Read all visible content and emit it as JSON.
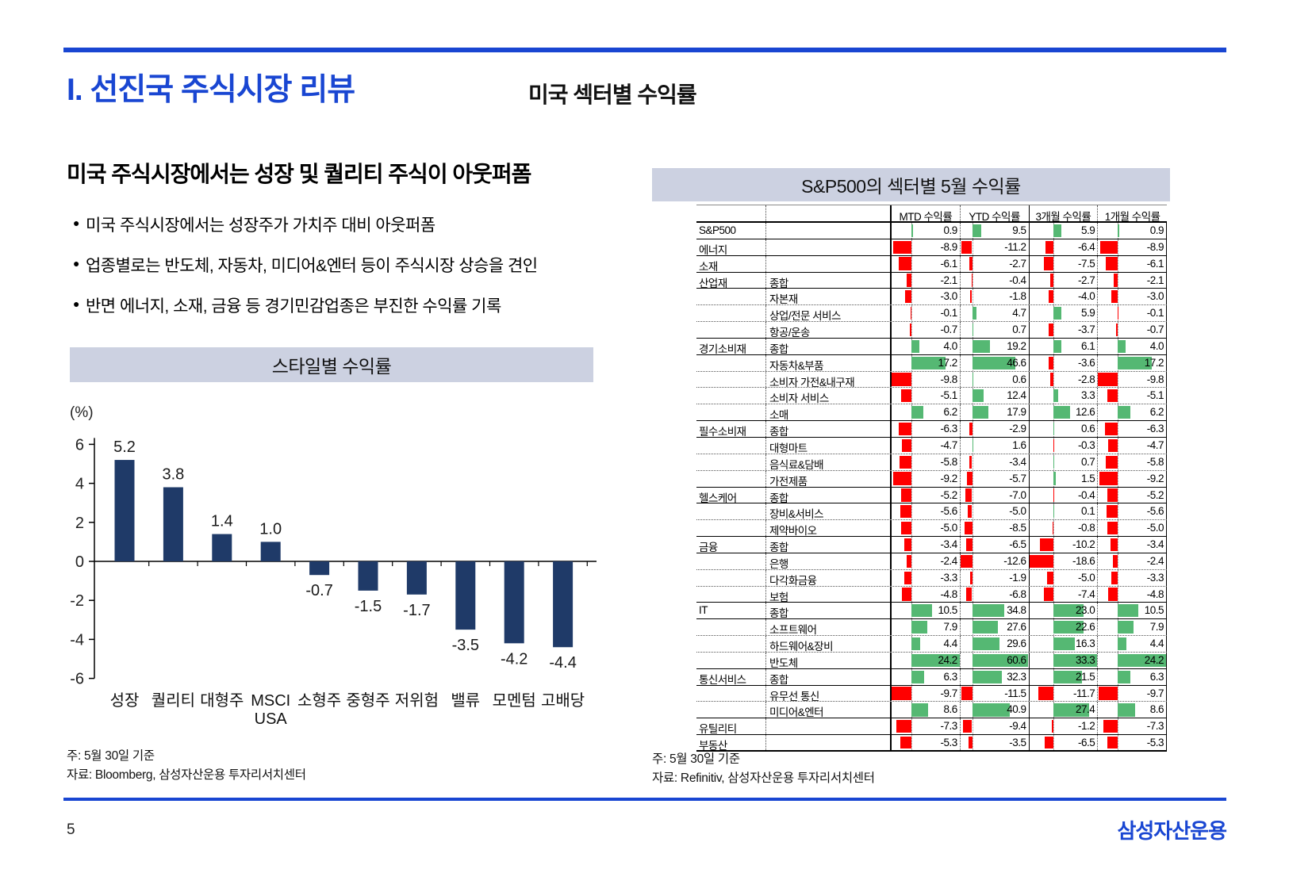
{
  "page": {
    "title": "I. 선진국 주식시장 리뷰",
    "subtitle": "미국 섹터별 수익률",
    "page_number": "5",
    "logo_text": "삼성자산운용",
    "accent_blue": "#1946d2"
  },
  "left": {
    "heading": "미국 주식시장에서는 성장 및 퀄리티 주식이 아웃퍼폼",
    "bullets": [
      "미국 주식시장에서는 성장주가 가치주 대비 아웃퍼폼",
      "업종별로는 반도체, 자동차, 미디어&엔터 등이 주식시장 상승을 견인",
      "반면 에너지, 소재, 금융 등 경기민감업종은 부진한 수익률 기록"
    ],
    "note_line1": "주: 5월 30일 기준",
    "note_line2": "자료: Bloomberg, 삼성자산운용 투자리서치센터"
  },
  "chart_data": {
    "type": "bar",
    "title": "스타일별 수익률",
    "unit_label": "(%)",
    "categories": [
      "성장",
      "퀄리티",
      "대형주",
      "MSCI USA",
      "소형주",
      "중형주",
      "저위험",
      "밸류",
      "모멘텀",
      "고배당"
    ],
    "values": [
      5.2,
      3.8,
      1.4,
      1.0,
      -0.7,
      -1.5,
      -1.7,
      -3.5,
      -4.2,
      -4.4
    ],
    "bar_color": "#1f3a68",
    "ylim": [
      -6,
      6
    ],
    "yticks": [
      6,
      4,
      2,
      0,
      -2,
      -4,
      -6
    ],
    "grid": false,
    "legend": false
  },
  "table": {
    "title": "S&P500의 섹터별 5월 수익률",
    "columns": [
      "MTD 수익률",
      "YTD 수익률",
      "3개월 수익률",
      "1개월 수익률"
    ],
    "positive_color": "#55b873",
    "negative_color": "#ff0000",
    "note_line1": "주: 5월 30일 기준",
    "note_line2": "자료: Refinitiv, 삼성자산운용 투자리서치센터",
    "rows": [
      {
        "group": "S&P500",
        "sub": "",
        "values": [
          0.9,
          9.5,
          5.9,
          0.9
        ]
      },
      {
        "group": "에너지",
        "sub": "",
        "values": [
          -8.9,
          -11.2,
          -6.4,
          -8.9
        ]
      },
      {
        "group": "소재",
        "sub": "",
        "values": [
          -6.1,
          -2.7,
          -7.5,
          -6.1
        ]
      },
      {
        "group": "산업재",
        "sub": "종합",
        "values": [
          -2.1,
          -0.4,
          -2.7,
          -2.1
        ]
      },
      {
        "group": "",
        "sub": "자본재",
        "values": [
          -3.0,
          -1.8,
          -4.0,
          -3.0
        ]
      },
      {
        "group": "",
        "sub": "상업/전문 서비스",
        "values": [
          -0.1,
          4.7,
          5.9,
          -0.1
        ]
      },
      {
        "group": "",
        "sub": "항공/운송",
        "values": [
          -0.7,
          0.7,
          -3.7,
          -0.7
        ]
      },
      {
        "group": "경기소비재",
        "sub": "종합",
        "values": [
          4.0,
          19.2,
          6.1,
          4.0
        ]
      },
      {
        "group": "",
        "sub": "자동차&부품",
        "values": [
          17.2,
          46.6,
          -3.6,
          17.2
        ]
      },
      {
        "group": "",
        "sub": "소비자 가전&내구재",
        "values": [
          -9.8,
          0.6,
          -2.8,
          -9.8
        ]
      },
      {
        "group": "",
        "sub": "소비자 서비스",
        "values": [
          -5.1,
          12.4,
          3.3,
          -5.1
        ]
      },
      {
        "group": "",
        "sub": "소매",
        "values": [
          6.2,
          17.9,
          12.6,
          6.2
        ]
      },
      {
        "group": "필수소비재",
        "sub": "종합",
        "values": [
          -6.3,
          -2.9,
          0.6,
          -6.3
        ]
      },
      {
        "group": "",
        "sub": "대형마트",
        "values": [
          -4.7,
          1.6,
          -0.3,
          -4.7
        ]
      },
      {
        "group": "",
        "sub": "음식료&담배",
        "values": [
          -5.8,
          -3.4,
          0.7,
          -5.8
        ]
      },
      {
        "group": "",
        "sub": "가전제품",
        "values": [
          -9.2,
          -5.7,
          1.5,
          -9.2
        ]
      },
      {
        "group": "헬스케어",
        "sub": "종합",
        "values": [
          -5.2,
          -7.0,
          -0.4,
          -5.2
        ]
      },
      {
        "group": "",
        "sub": "장비&서비스",
        "values": [
          -5.6,
          -5.0,
          0.1,
          -5.6
        ]
      },
      {
        "group": "",
        "sub": "제약바이오",
        "values": [
          -5.0,
          -8.5,
          -0.8,
          -5.0
        ]
      },
      {
        "group": "금융",
        "sub": "종합",
        "values": [
          -3.4,
          -6.5,
          -10.2,
          -3.4
        ]
      },
      {
        "group": "",
        "sub": "은행",
        "values": [
          -2.4,
          -12.6,
          -18.6,
          -2.4
        ]
      },
      {
        "group": "",
        "sub": "다각화금융",
        "values": [
          -3.3,
          -1.9,
          -5.0,
          -3.3
        ]
      },
      {
        "group": "",
        "sub": "보험",
        "values": [
          -4.8,
          -6.8,
          -7.4,
          -4.8
        ]
      },
      {
        "group": "IT",
        "sub": "종합",
        "values": [
          10.5,
          34.8,
          23.0,
          10.5
        ]
      },
      {
        "group": "",
        "sub": "소프트웨어",
        "values": [
          7.9,
          27.6,
          22.6,
          7.9
        ]
      },
      {
        "group": "",
        "sub": "하드웨어&장비",
        "values": [
          4.4,
          29.6,
          16.3,
          4.4
        ]
      },
      {
        "group": "",
        "sub": "반도체",
        "values": [
          24.2,
          60.6,
          33.3,
          24.2
        ]
      },
      {
        "group": "통신서비스",
        "sub": "종합",
        "values": [
          6.3,
          32.3,
          21.5,
          6.3
        ]
      },
      {
        "group": "",
        "sub": "유무선 통신",
        "values": [
          -9.7,
          -11.5,
          -11.7,
          -9.7
        ]
      },
      {
        "group": "",
        "sub": "미디어&엔터",
        "values": [
          8.6,
          40.9,
          27.4,
          8.6
        ]
      },
      {
        "group": "유틸리티",
        "sub": "",
        "values": [
          -7.3,
          -9.4,
          -1.2,
          -7.3
        ]
      },
      {
        "group": "부동산",
        "sub": "",
        "values": [
          -5.3,
          -3.5,
          -6.5,
          -5.3
        ]
      }
    ]
  }
}
